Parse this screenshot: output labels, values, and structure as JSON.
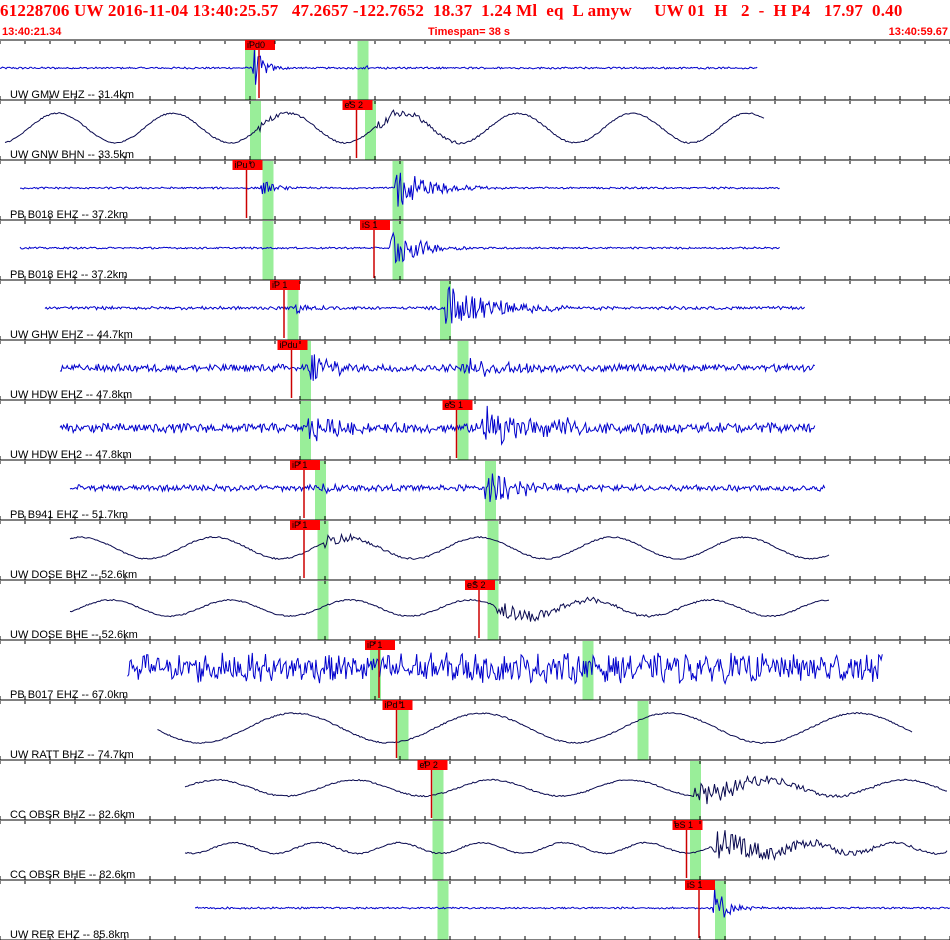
{
  "header": {
    "title": "61228706 UW 2016-11-04 13:40:25.57   47.2657 -122.7652  18.37  1.24 Ml  eq  L amyw     UW 01  H   2  -  H P4   17.97  0.40",
    "start_time": "13:40:21.34",
    "timespan": "Timespan=  38 s",
    "end_time": "13:40:59.67"
  },
  "colors": {
    "title": "#ff0000",
    "trace_blue": "#0000cc",
    "trace_navy": "#0a0a50",
    "pick_flag": "#ff0000",
    "pick_line": "#cc0000",
    "highlight": "#99ee99",
    "frame": "#000000"
  },
  "chart_data": {
    "type": "line",
    "x_unit": "s",
    "x_start": "13:40:21.34",
    "x_end": "13:40:59.67",
    "timespan_s": 38,
    "channels": [
      {
        "label": "UW GMW EHZ -- 31.4km",
        "color": "blue",
        "start": 0.0,
        "end": 30.3,
        "amp": 0.03,
        "period": 0.22,
        "wave": "hf",
        "events": [
          {
            "t": 10.1,
            "amp": 0.95,
            "decay": 0.4
          },
          {
            "t": 14.5,
            "amp": 0.12,
            "decay": 0.3
          }
        ],
        "picks": [
          {
            "label": "iPd0",
            "t": 9.8
          }
        ],
        "green": [
          10.0,
          14.5
        ]
      },
      {
        "label": "UW GNW BHN -- 33.5km",
        "color": "navy",
        "start": 0.2,
        "end": 30.6,
        "amp": 0.55,
        "period": 4.6,
        "wave": "lf",
        "events": [
          {
            "t": 10.3,
            "amp": 0.2,
            "decay": 1.0
          },
          {
            "t": 15.0,
            "amp": 0.3,
            "decay": 2.0
          }
        ],
        "picks": [
          {
            "label": "eS 2",
            "t": 13.7
          }
        ],
        "green": [
          10.2,
          14.8
        ]
      },
      {
        "label": "PB B018 EHZ -- 37.2km",
        "color": "blue",
        "start": 0.8,
        "end": 31.2,
        "amp": 0.03,
        "period": 0.2,
        "wave": "hf",
        "events": [
          {
            "t": 10.4,
            "amp": 0.35,
            "decay": 0.5
          },
          {
            "t": 15.8,
            "amp": 0.9,
            "decay": 1.2
          }
        ],
        "picks": [
          {
            "label": "iPu 0",
            "t": 9.3
          }
        ],
        "green": [
          10.7,
          15.9
        ]
      },
      {
        "label": "PB B018 EH2 -- 37.2km",
        "color": "blue",
        "start": 0.8,
        "end": 31.2,
        "amp": 0.03,
        "period": 0.2,
        "wave": "hf",
        "events": [
          {
            "t": 15.6,
            "amp": 0.95,
            "decay": 1.0
          }
        ],
        "picks": [
          {
            "label": "iS 1",
            "t": 14.4
          }
        ],
        "green": [
          10.7,
          15.9
        ]
      },
      {
        "label": "UW GHW EHZ -- 44.7km",
        "color": "blue",
        "start": 1.8,
        "end": 32.2,
        "amp": 0.05,
        "period": 0.18,
        "wave": "hf",
        "events": [
          {
            "t": 11.8,
            "amp": 0.2,
            "decay": 0.8
          },
          {
            "t": 17.8,
            "amp": 0.9,
            "decay": 1.8
          }
        ],
        "picks": [
          {
            "label": "iP 1",
            "t": 10.8
          }
        ],
        "green": [
          11.7,
          17.8
        ]
      },
      {
        "label": "UW HDW EHZ -- 47.8km",
        "color": "blue",
        "start": 2.4,
        "end": 32.6,
        "amp": 0.12,
        "period": 0.16,
        "wave": "hf",
        "events": [
          {
            "t": 12.3,
            "amp": 0.8,
            "decay": 0.9
          },
          {
            "t": 18.5,
            "amp": 0.3,
            "decay": 2.5
          }
        ],
        "picks": [
          {
            "label": "iPdu",
            "t": 11.1
          }
        ],
        "green": [
          12.2,
          18.5
        ]
      },
      {
        "label": "UW HDW EH2 -- 47.8km",
        "color": "blue",
        "start": 2.4,
        "end": 32.6,
        "amp": 0.15,
        "period": 0.16,
        "wave": "hf",
        "events": [
          {
            "t": 12.3,
            "amp": 0.55,
            "decay": 1.2
          },
          {
            "t": 19.2,
            "amp": 0.75,
            "decay": 2.8
          }
        ],
        "picks": [
          {
            "label": "eS 1",
            "t": 17.7
          }
        ],
        "green": [
          12.2,
          18.5
        ]
      },
      {
        "label": "PB B941 EHZ -- 51.7km",
        "color": "blue",
        "start": 2.8,
        "end": 33.0,
        "amp": 0.1,
        "period": 0.25,
        "wave": "hf",
        "events": [
          {
            "t": 12.8,
            "amp": 0.2,
            "decay": 0.6
          },
          {
            "t": 19.4,
            "amp": 0.75,
            "decay": 1.5
          }
        ],
        "picks": [
          {
            "label": "iP 1",
            "t": 11.6
          }
        ],
        "green": [
          12.8,
          19.6
        ]
      },
      {
        "label": "UW DOSE BHZ -- 52.6km",
        "color": "navy",
        "start": 2.8,
        "end": 33.2,
        "amp": 0.4,
        "period": 5.3,
        "wave": "lf",
        "events": [
          {
            "t": 13.0,
            "amp": 0.35,
            "decay": 1.4
          }
        ],
        "picks": [
          {
            "label": "iP 1",
            "t": 11.6
          }
        ],
        "green": [
          12.9,
          19.7
        ]
      },
      {
        "label": "UW DOSE BHE -- 52.6km",
        "color": "navy",
        "start": 2.8,
        "end": 33.2,
        "amp": 0.3,
        "period": 4.8,
        "wave": "lf",
        "events": [
          {
            "t": 19.8,
            "amp": 0.5,
            "decay": 2.5
          }
        ],
        "picks": [
          {
            "label": "eS 2",
            "t": 18.6
          }
        ],
        "green": [
          12.9,
          19.7
        ]
      },
      {
        "label": "PB B017 EHZ -- 67.0km",
        "color": "blue",
        "start": 5.1,
        "end": 35.3,
        "amp": 0.45,
        "period": 0.6,
        "wave": "hf",
        "events": [],
        "picks": [
          {
            "label": "iP 1",
            "t": 14.6
          }
        ],
        "green": [
          15.0,
          23.5
        ]
      },
      {
        "label": "UW RATT BHZ -- 74.7km",
        "color": "navy",
        "start": 6.3,
        "end": 36.5,
        "amp": 0.55,
        "period": 7.5,
        "wave": "lf",
        "events": [],
        "picks": [
          {
            "label": "iPd 1",
            "t": 15.3
          }
        ],
        "green": [
          16.1,
          25.7
        ]
      },
      {
        "label": "CC OBSR BHZ -- 82.6km",
        "color": "navy",
        "start": 7.4,
        "end": 37.9,
        "amp": 0.3,
        "period": 5.5,
        "wave": "lf",
        "events": [
          {
            "t": 27.8,
            "amp": 0.65,
            "decay": 2.5
          }
        ],
        "picks": [
          {
            "label": "eP 2",
            "t": 16.7
          }
        ],
        "green": [
          17.5,
          27.8
        ]
      },
      {
        "label": "CC OBSR BHE -- 82.6km",
        "color": "navy",
        "start": 7.4,
        "end": 37.9,
        "amp": 0.2,
        "period": 3.3,
        "wave": "lf",
        "events": [
          {
            "t": 28.5,
            "amp": 0.75,
            "decay": 3.0
          }
        ],
        "picks": [
          {
            "label": "eS 1",
            "t": 26.9
          }
        ],
        "green": [
          17.5,
          27.8
        ]
      },
      {
        "label": "UW RER EHZ -- 85.8km",
        "color": "blue",
        "start": 7.8,
        "end": 38.0,
        "amp": 0.03,
        "period": 0.2,
        "wave": "hf",
        "events": [
          {
            "t": 28.5,
            "amp": 0.95,
            "decay": 0.5
          }
        ],
        "picks": [
          {
            "label": "iS 1",
            "t": 27.4
          }
        ],
        "green": [
          17.7,
          28.8
        ]
      }
    ]
  }
}
